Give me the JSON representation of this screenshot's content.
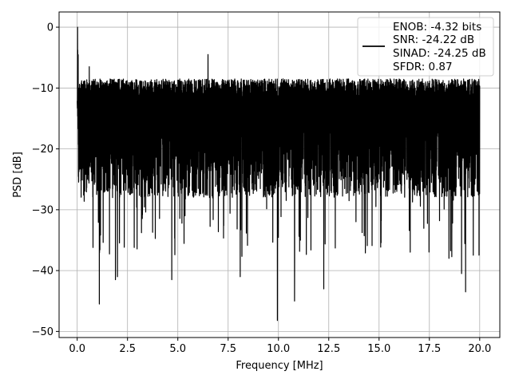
{
  "chart_data": {
    "type": "line",
    "xlabel": "Frequency [MHz]",
    "ylabel": "PSD [dB]",
    "xlim": [
      -0.9,
      21.0
    ],
    "ylim": [
      -51.0,
      2.5
    ],
    "xticks": [
      0.0,
      2.5,
      5.0,
      7.5,
      10.0,
      12.5,
      15.0,
      17.5,
      20.0
    ],
    "xtick_labels": [
      "0.0",
      "2.5",
      "5.0",
      "7.5",
      "10.0",
      "12.5",
      "15.0",
      "17.5",
      "20.0"
    ],
    "yticks": [
      0,
      -10,
      -20,
      -30,
      -40,
      -50
    ],
    "ytick_labels": [
      "0",
      "−10",
      "−20",
      "−30",
      "−40",
      "−50"
    ],
    "grid": true,
    "line_color": "#000000",
    "legend_placement": "upper-right",
    "legend_lines": [
      "ENOB: -4.32 bits",
      "SNR: -24.22 dB",
      "SINAD: -24.25 dB",
      "SFDR: 0.87"
    ],
    "series": [
      {
        "x_range": [
          0.0,
          20.0
        ],
        "y_envelope": [
          -8.5,
          -36.0
        ],
        "notable_points": [
          {
            "x": 0.02,
            "y": 0.0
          },
          {
            "x": 0.6,
            "y": -6.5
          },
          {
            "x": 1.1,
            "y": -45.5
          },
          {
            "x": 1.9,
            "y": -41.5
          },
          {
            "x": 2.0,
            "y": -41.0
          },
          {
            "x": 4.7,
            "y": -41.5
          },
          {
            "x": 6.5,
            "y": -4.5
          },
          {
            "x": 8.1,
            "y": -41.0
          },
          {
            "x": 9.95,
            "y": -48.2
          },
          {
            "x": 10.8,
            "y": -45.0
          },
          {
            "x": 12.25,
            "y": -43.0
          },
          {
            "x": 19.3,
            "y": -43.5
          },
          {
            "x": 19.1,
            "y": -40.5
          }
        ]
      }
    ]
  }
}
